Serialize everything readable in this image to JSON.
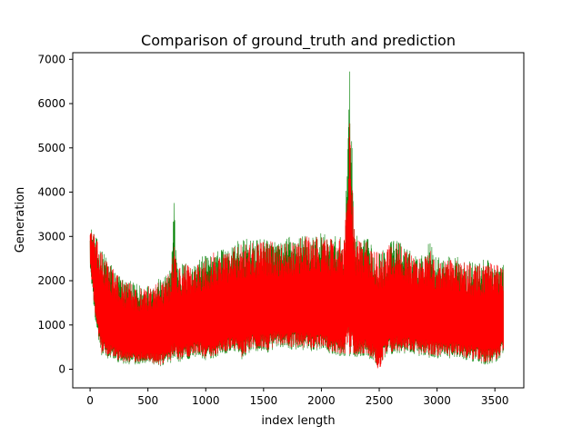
{
  "chart_data": {
    "type": "line",
    "title": "Comparison of ground_truth and prediction",
    "xlabel": "index length",
    "ylabel": "Generation",
    "xlim": [
      -150,
      3750
    ],
    "ylim": [
      -420,
      7150
    ],
    "xticks": [
      0,
      500,
      1000,
      1500,
      2000,
      2500,
      3000,
      3500
    ],
    "yticks": [
      0,
      1000,
      2000,
      3000,
      4000,
      5000,
      6000,
      7000
    ],
    "grid": false,
    "legend": "none",
    "series": [
      {
        "color": "#008000",
        "x": [
          0,
          60,
          100,
          160,
          230,
          300,
          380,
          460,
          530,
          600,
          650,
          700,
          725,
          760,
          820,
          880,
          940,
          1000,
          1060,
          1120,
          1180,
          1240,
          1300,
          1360,
          1420,
          1480,
          1540,
          1600,
          1660,
          1720,
          1780,
          1840,
          1900,
          1960,
          2020,
          2080,
          2140,
          2200,
          2245,
          2290,
          2340,
          2400,
          2460,
          2500,
          2540,
          2600,
          2660,
          2720,
          2780,
          2840,
          2900,
          2940,
          2980,
          3040,
          3100,
          3160,
          3220,
          3280,
          3340,
          3400,
          3460,
          3520,
          3575
        ],
        "high": [
          3250,
          2950,
          2700,
          2500,
          2200,
          2050,
          1950,
          1900,
          1950,
          2050,
          2100,
          2300,
          3750,
          2350,
          2450,
          2350,
          2500,
          2600,
          2700,
          2700,
          2750,
          2800,
          2950,
          2950,
          2900,
          2950,
          2950,
          2950,
          2850,
          3000,
          2950,
          3050,
          3050,
          3050,
          3100,
          3000,
          3000,
          3000,
          6720,
          3050,
          2950,
          2950,
          2700,
          2700,
          2700,
          2900,
          2950,
          2800,
          2650,
          2600,
          2600,
          3150,
          2550,
          2550,
          2550,
          2550,
          2500,
          2450,
          2400,
          2500,
          2450,
          2400,
          2350
        ],
        "low": [
          2200,
          700,
          250,
          200,
          150,
          100,
          100,
          100,
          80,
          60,
          100,
          150,
          300,
          150,
          200,
          250,
          300,
          150,
          200,
          300,
          350,
          350,
          200,
          350,
          400,
          400,
          350,
          500,
          500,
          450,
          450,
          400,
          400,
          400,
          350,
          350,
          300,
          300,
          300,
          250,
          300,
          250,
          150,
          0,
          250,
          300,
          350,
          350,
          350,
          300,
          300,
          250,
          250,
          250,
          250,
          250,
          200,
          200,
          150,
          100,
          100,
          150,
          400
        ]
      },
      {
        "color": "#ff0000",
        "x": [
          0,
          60,
          100,
          160,
          230,
          300,
          380,
          460,
          530,
          600,
          650,
          700,
          725,
          760,
          820,
          880,
          940,
          1000,
          1060,
          1120,
          1180,
          1240,
          1300,
          1360,
          1420,
          1480,
          1540,
          1600,
          1660,
          1720,
          1780,
          1840,
          1900,
          1960,
          2020,
          2080,
          2140,
          2200,
          2245,
          2290,
          2340,
          2400,
          2460,
          2500,
          2540,
          2600,
          2660,
          2720,
          2780,
          2840,
          2900,
          2940,
          2980,
          3040,
          3100,
          3160,
          3220,
          3280,
          3340,
          3400,
          3460,
          3520,
          3575
        ],
        "high": [
          3250,
          2900,
          2650,
          2450,
          2150,
          2000,
          1900,
          1850,
          1900,
          2000,
          2050,
          2250,
          2800,
          2300,
          2400,
          2300,
          2450,
          2550,
          2650,
          2650,
          2700,
          2750,
          2900,
          2900,
          2850,
          2900,
          2900,
          2900,
          2800,
          2950,
          2900,
          3000,
          3000,
          3000,
          3000,
          2950,
          2950,
          2950,
          5550,
          3000,
          2900,
          2900,
          2650,
          2650,
          2650,
          2850,
          2900,
          2750,
          2600,
          2550,
          2550,
          2700,
          2500,
          2500,
          2500,
          2500,
          2450,
          2400,
          2350,
          2450,
          2400,
          2350,
          2300
        ],
        "low": [
          2300,
          800,
          300,
          250,
          200,
          150,
          150,
          150,
          100,
          80,
          150,
          200,
          350,
          200,
          250,
          300,
          350,
          200,
          250,
          350,
          400,
          400,
          250,
          400,
          450,
          450,
          400,
          550,
          550,
          500,
          500,
          450,
          450,
          450,
          400,
          400,
          350,
          350,
          350,
          300,
          350,
          300,
          200,
          -100,
          300,
          350,
          400,
          400,
          400,
          350,
          350,
          300,
          300,
          300,
          300,
          300,
          250,
          250,
          200,
          150,
          150,
          200,
          450
        ]
      }
    ]
  }
}
